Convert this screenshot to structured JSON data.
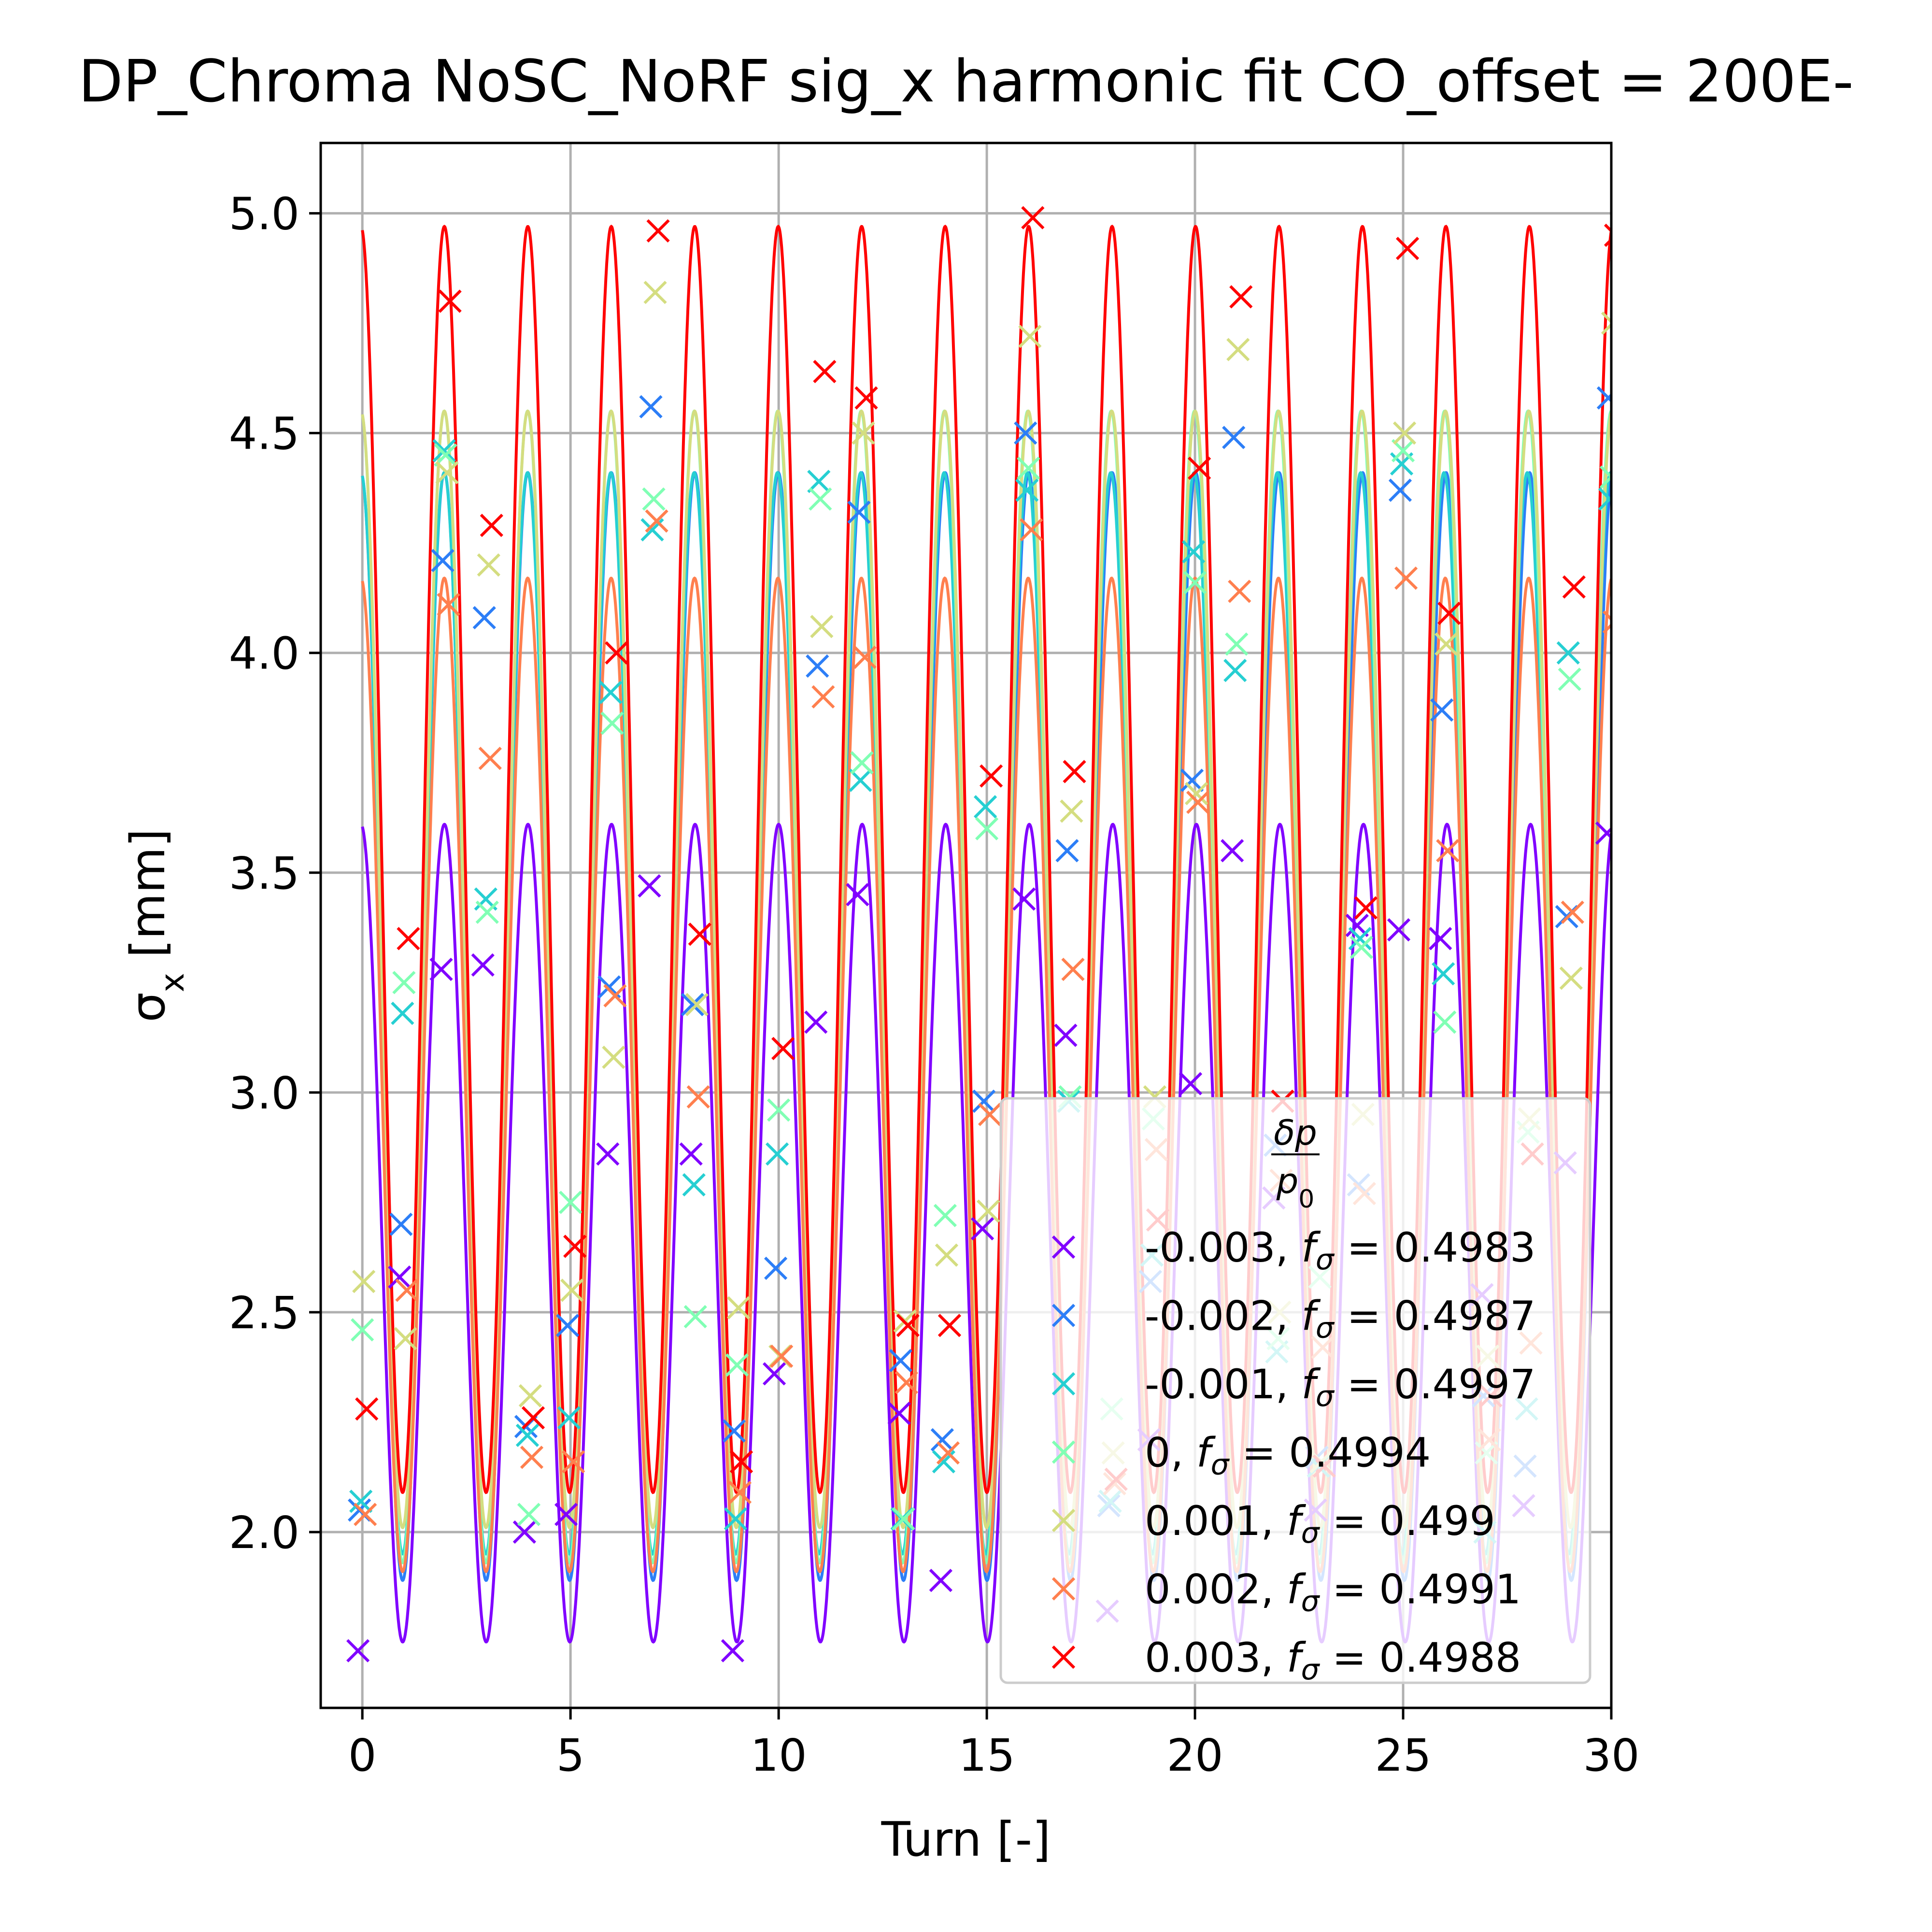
{
  "chart_data": {
    "type": "scatter",
    "title": "DP_Chroma NoSC_NoRF sig_x harmonic fit CO_offset = 200E-",
    "xlabel": "Turn [-]",
    "ylabel": "σ_x [mm]",
    "xlim": [
      -1,
      30
    ],
    "ylim": [
      1.6,
      5.16
    ],
    "xticks": [
      "0",
      "5",
      "10",
      "15",
      "20",
      "25",
      "30"
    ],
    "yticks": [
      "2.0",
      "2.5",
      "3.0",
      "3.5",
      "4.0",
      "4.5",
      "5.0"
    ],
    "grid": true,
    "legend": {
      "placement": "lower-right",
      "title": "δp / p0"
    },
    "series": [
      {
        "name": "-0.003, f_σ = 0.4983",
        "label_main": "-0.003, ",
        "label_f": "f",
        "label_sub": "σ",
        "label_rest": " = 0.4983",
        "color": "#8000ff",
        "fit": {
          "mean": 2.68,
          "amp": 0.93,
          "freq": 0.4983,
          "phase": 3.25
        },
        "x": [
          0,
          1,
          2,
          3,
          4,
          5,
          6,
          7,
          8,
          9,
          10,
          11,
          12,
          13,
          14,
          15,
          16,
          17,
          18,
          19,
          20,
          21,
          22,
          23,
          24,
          25,
          26,
          27,
          28,
          29,
          30
        ],
        "y": [
          1.73,
          2.58,
          3.28,
          3.29,
          2.0,
          2.04,
          2.86,
          3.47,
          2.86,
          1.73,
          2.36,
          3.16,
          3.45,
          2.27,
          1.89,
          2.69,
          3.44,
          3.13,
          1.82,
          2.21,
          3.02,
          3.55,
          2.76,
          2.05,
          3.38,
          3.37,
          3.35,
          2.54,
          2.06,
          2.84,
          3.59
        ]
      },
      {
        "name": "-0.002, f_σ = 0.4987",
        "label_main": "-0.002, ",
        "label_f": "f",
        "label_sub": "σ",
        "label_rest": " = 0.4987",
        "color": "#2c7ef7",
        "fit": {
          "mean": 3.15,
          "amp": 1.26,
          "freq": 0.4987,
          "phase": 3.25
        },
        "x": [
          0,
          1,
          2,
          3,
          4,
          5,
          6,
          7,
          8,
          9,
          10,
          11,
          12,
          13,
          14,
          15,
          16,
          17,
          18,
          19,
          20,
          21,
          22,
          23,
          24,
          25,
          26,
          27,
          28,
          29,
          30
        ],
        "y": [
          2.05,
          2.7,
          4.21,
          4.08,
          2.24,
          2.47,
          3.24,
          4.56,
          3.2,
          2.23,
          2.6,
          3.97,
          4.32,
          2.39,
          2.21,
          2.98,
          4.5,
          3.55,
          2.06,
          2.57,
          3.71,
          4.49,
          2.88,
          2.17,
          2.79,
          4.37,
          3.87,
          2.31,
          2.15,
          3.4,
          4.58
        ]
      },
      {
        "name": "-0.001, f_σ = 0.4997",
        "label_main": "-0.001, ",
        "label_f": "f",
        "label_sub": "σ",
        "label_rest": " = 0.4997",
        "color": "#26cfd2",
        "fit": {
          "mean": 3.18,
          "amp": 1.23,
          "freq": 0.4997,
          "phase": 3.25
        },
        "x": [
          0,
          1,
          2,
          3,
          4,
          5,
          6,
          7,
          8,
          9,
          10,
          11,
          12,
          13,
          14,
          15,
          16,
          17,
          18,
          19,
          20,
          21,
          22,
          23,
          24,
          25,
          26,
          27,
          28,
          29,
          30
        ],
        "y": [
          2.07,
          3.18,
          4.46,
          3.44,
          2.22,
          2.26,
          3.91,
          4.28,
          2.79,
          2.03,
          2.86,
          4.39,
          3.71,
          2.03,
          2.16,
          3.65,
          4.37,
          2.98,
          2.07,
          2.63,
          4.23,
          3.96,
          2.41,
          2.15,
          3.35,
          4.43,
          3.27,
          2.0,
          2.28,
          4.0,
          4.35
        ]
      },
      {
        "name": "0, f_σ = 0.4994",
        "label_main": "0, ",
        "label_f": "f",
        "label_sub": "σ",
        "label_rest": " = 0.4994",
        "color": "#80ffb4",
        "fit": {
          "mean": 3.24,
          "amp": 1.31,
          "freq": 0.4994,
          "phase": 3.25
        },
        "x": [
          0,
          1,
          2,
          3,
          4,
          5,
          6,
          7,
          8,
          9,
          10,
          11,
          12,
          13,
          14,
          15,
          16,
          17,
          18,
          19,
          20,
          21,
          22,
          23,
          24,
          25,
          26,
          27,
          28,
          29,
          30
        ],
        "y": [
          2.46,
          3.25,
          4.45,
          3.41,
          2.04,
          2.75,
          3.84,
          4.35,
          2.49,
          2.38,
          2.96,
          4.35,
          3.75,
          2.03,
          2.72,
          3.6,
          4.42,
          2.99,
          2.28,
          2.94,
          4.16,
          4.02,
          2.44,
          2.58,
          3.33,
          4.46,
          3.16,
          2.18,
          2.91,
          3.94,
          4.4
        ]
      },
      {
        "name": "0.001, f_σ = 0.499",
        "label_main": "0.001, ",
        "label_f": "f",
        "label_sub": "σ",
        "label_rest": " = 0.499",
        "color": "#d4dd80",
        "fit": {
          "mean": 3.28,
          "amp": 1.27,
          "freq": 0.499,
          "phase": 3.25
        },
        "x": [
          0,
          1,
          2,
          3,
          4,
          5,
          6,
          7,
          8,
          9,
          10,
          11,
          12,
          13,
          14,
          15,
          16,
          17,
          18,
          19,
          20,
          21,
          22,
          23,
          24,
          25,
          26,
          27,
          28,
          29,
          30
        ],
        "y": [
          2.57,
          2.44,
          4.41,
          4.2,
          2.31,
          2.55,
          3.08,
          4.82,
          3.2,
          2.51,
          2.4,
          4.06,
          4.5,
          2.48,
          2.63,
          2.73,
          4.72,
          3.64,
          2.18,
          2.99,
          3.68,
          4.69,
          2.5,
          2.16,
          2.95,
          4.5,
          4.02,
          2.4,
          2.94,
          3.26,
          4.75
        ]
      },
      {
        "name": "0.002, f_σ = 0.4991",
        "label_main": "0.002, ",
        "label_f": "f",
        "label_sub": "σ",
        "label_rest": " = 0.4991",
        "color": "#ff7f4e",
        "fit": {
          "mean": 3.04,
          "amp": 1.13,
          "freq": 0.4991,
          "phase": 3.25
        },
        "x": [
          0,
          1,
          2,
          3,
          4,
          5,
          6,
          7,
          8,
          9,
          10,
          11,
          12,
          13,
          14,
          15,
          16,
          17,
          18,
          19,
          20,
          21,
          22,
          23,
          24,
          25,
          26,
          27,
          28,
          29,
          30
        ],
        "y": [
          2.04,
          2.55,
          4.11,
          3.76,
          2.17,
          2.16,
          3.22,
          4.3,
          2.99,
          2.09,
          2.4,
          3.9,
          3.99,
          2.34,
          2.18,
          2.95,
          4.28,
          3.28,
          2.11,
          2.87,
          3.66,
          4.14,
          2.8,
          2.42,
          2.77,
          4.17,
          3.55,
          2.21,
          2.43,
          3.41,
          4.07
        ]
      },
      {
        "name": "0.003, f_σ = 0.4988",
        "label_main": "0.003, ",
        "label_f": "f",
        "label_sub": "σ",
        "label_rest": " = 0.4988",
        "color": "#ff0000",
        "fit": {
          "mean": 3.53,
          "amp": 1.44,
          "freq": 0.4988,
          "phase": 3.25
        },
        "x": [
          0,
          1,
          2,
          3,
          4,
          5,
          6,
          7,
          8,
          9,
          10,
          11,
          12,
          13,
          14,
          15,
          16,
          17,
          18,
          19,
          20,
          21,
          22,
          23,
          24,
          25,
          26,
          27,
          28,
          29,
          30
        ],
        "y": [
          2.28,
          3.35,
          4.8,
          4.29,
          2.26,
          2.65,
          4.0,
          4.96,
          3.36,
          2.16,
          3.1,
          4.64,
          4.58,
          2.47,
          2.47,
          3.72,
          4.99,
          3.73,
          2.12,
          2.71,
          4.42,
          4.81,
          2.98,
          2.15,
          3.42,
          4.92,
          4.09,
          2.31,
          2.86,
          4.15,
          4.95
        ]
      }
    ]
  }
}
